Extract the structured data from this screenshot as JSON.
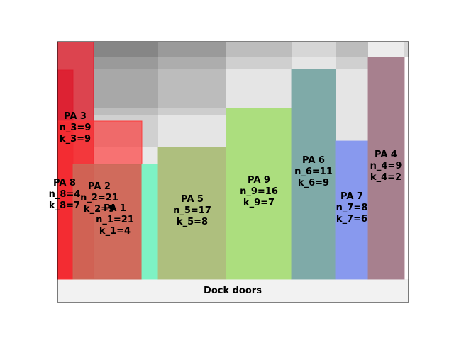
{
  "chart_data": {
    "type": "diagram",
    "title": "",
    "footer_label": "Dock doors",
    "areas": [
      {
        "id": "pa8",
        "lines": [
          "PA 8",
          "n_8=4",
          "k_8=7"
        ],
        "color": "#dd1c2e"
      },
      {
        "id": "pa3",
        "lines": [
          "PA 3",
          "n_3=9",
          "k_3=9"
        ],
        "color": "#ff3333"
      },
      {
        "id": "pa2",
        "lines": [
          "PA 2",
          "n_2=21",
          "k_2=9"
        ],
        "color": "#c96a58"
      },
      {
        "id": "pa1",
        "lines": [
          "PA 1",
          "n_1=21",
          "k_1=4"
        ],
        "color": "#7ef2c4"
      },
      {
        "id": "pa5",
        "lines": [
          "PA 5",
          "n_5=17",
          "k_5=8"
        ],
        "color": "#aebf7e"
      },
      {
        "id": "pa9",
        "lines": [
          "PA 9",
          "n_9=16",
          "k_9=7"
        ],
        "color": "#acde7e"
      },
      {
        "id": "pa6",
        "lines": [
          "PA 6",
          "n_6=11",
          "k_6=9"
        ],
        "color": "#7faaa8"
      },
      {
        "id": "pa7",
        "lines": [
          "PA 7",
          "n_7=8",
          "k_7=6"
        ],
        "color": "#8899ee"
      },
      {
        "id": "pa4",
        "lines": [
          "PA 4",
          "n_4=9",
          "k_4=2"
        ],
        "color": "#a7808e"
      }
    ]
  }
}
